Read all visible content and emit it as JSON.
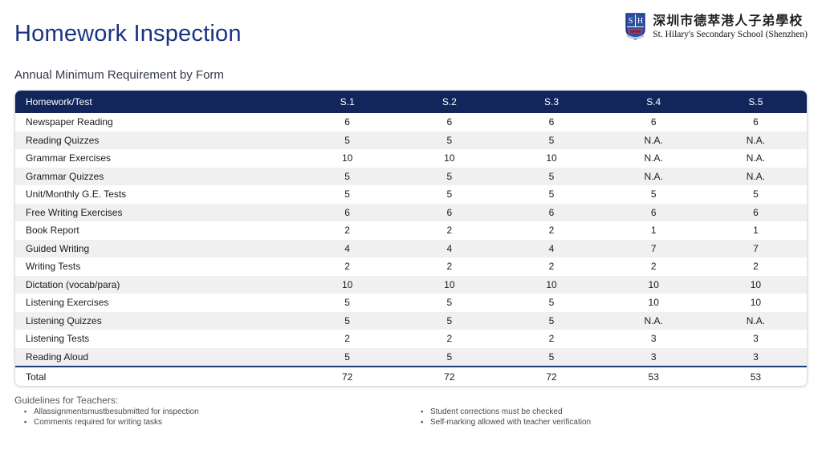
{
  "page": {
    "title": "Homework Inspection",
    "subtitle": "Annual Minimum Requirement by Form"
  },
  "logo": {
    "shield_initials": "SH",
    "school_name_zh": "深圳市德萃港人子弟學校",
    "school_name_en": "St. Hilary's Secondary School (Shenzhen)"
  },
  "colors": {
    "title_blue": "#1a3381",
    "table_header_navy": "#12265c",
    "row_alt_gray": "#f0f0f0",
    "total_separator_navy": "#1e3a78",
    "shield_blue": "#2d4e9e",
    "shield_red": "#c43a55"
  },
  "table": {
    "columns": [
      "Homework/Test",
      "S.1",
      "S.2",
      "S.3",
      "S.4",
      "S.5"
    ],
    "rows": [
      {
        "label": "Newspaper Reading",
        "values": [
          "6",
          "6",
          "6",
          "6",
          "6"
        ]
      },
      {
        "label": "Reading Quizzes",
        "values": [
          "5",
          "5",
          "5",
          "N.A.",
          "N.A."
        ]
      },
      {
        "label": "Grammar Exercises",
        "values": [
          "10",
          "10",
          "10",
          "N.A.",
          "N.A."
        ]
      },
      {
        "label": "Grammar Quizzes",
        "values": [
          "5",
          "5",
          "5",
          "N.A.",
          "N.A."
        ]
      },
      {
        "label": "Unit/Monthly G.E. Tests",
        "values": [
          "5",
          "5",
          "5",
          "5",
          "5"
        ]
      },
      {
        "label": "Free Writing Exercises",
        "values": [
          "6",
          "6",
          "6",
          "6",
          "6"
        ]
      },
      {
        "label": "Book Report",
        "values": [
          "2",
          "2",
          "2",
          "1",
          "1"
        ]
      },
      {
        "label": "Guided Writing",
        "values": [
          "4",
          "4",
          "4",
          "7",
          "7"
        ]
      },
      {
        "label": "Writing Tests",
        "values": [
          "2",
          "2",
          "2",
          "2",
          "2"
        ]
      },
      {
        "label": "Dictation (vocab/para)",
        "values": [
          "10",
          "10",
          "10",
          "10",
          "10"
        ]
      },
      {
        "label": "Listening Exercises",
        "values": [
          "5",
          "5",
          "5",
          "10",
          "10"
        ]
      },
      {
        "label": "Listening Quizzes",
        "values": [
          "5",
          "5",
          "5",
          "N.A.",
          "N.A."
        ]
      },
      {
        "label": "Listening Tests",
        "values": [
          "2",
          "2",
          "2",
          "3",
          "3"
        ]
      },
      {
        "label": "Reading Aloud",
        "values": [
          "5",
          "5",
          "5",
          "3",
          "3"
        ]
      }
    ],
    "total": {
      "label": "Total",
      "values": [
        "72",
        "72",
        "72",
        "53",
        "53"
      ]
    }
  },
  "guidelines": {
    "heading": "Guidelines for Teachers:",
    "left": [
      "Allassignmentsmustbesubmitted for inspection",
      "Comments required for writing tasks"
    ],
    "right": [
      "Student corrections must be checked",
      "Self-marking allowed with teacher verification"
    ]
  }
}
